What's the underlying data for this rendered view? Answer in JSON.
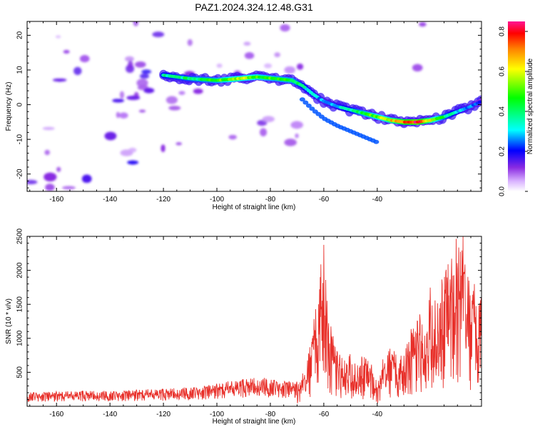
{
  "title": "PAZ1.2024.324.12.48.G31",
  "chart_data": [
    {
      "type": "heatmap",
      "xlabel": "Height of straight line (km)",
      "ylabel": "Frequency (Hz)",
      "xlim": [
        -171,
        -1
      ],
      "ylim": [
        -25,
        24
      ],
      "xticks": [
        -160,
        -140,
        -120,
        -100,
        -80,
        -60,
        -40
      ],
      "yticks": [
        -20,
        -10,
        0,
        10,
        20
      ],
      "colorbar": {
        "label": "Normalized spectral amplitude",
        "range": [
          0,
          0.85
        ],
        "ticks": [
          0.0,
          0.2,
          0.4,
          0.6,
          0.8
        ],
        "colors": [
          "#ffffff",
          "#d9b3ff",
          "#8a2be2",
          "#0000ff",
          "#00ffff",
          "#00ff00",
          "#ffff00",
          "#ff8000",
          "#ff0000",
          "#ff1493"
        ]
      },
      "ridge": {
        "x": [
          -120,
          -110,
          -100,
          -92,
          -85,
          -78,
          -72,
          -68,
          -64,
          -60,
          -55,
          -50,
          -45,
          -40,
          -35,
          -30,
          -25,
          -20,
          -15,
          -10,
          -5,
          -1
        ],
        "y": [
          8.5,
          7.5,
          7.0,
          7.5,
          8.0,
          7.5,
          7.0,
          5.5,
          3.0,
          1.0,
          -0.5,
          -1.5,
          -2.5,
          -3.5,
          -4.5,
          -5.0,
          -5.0,
          -4.5,
          -3.5,
          -2.0,
          -0.5,
          1.0
        ],
        "amplitude": [
          0.35,
          0.4,
          0.45,
          0.55,
          0.5,
          0.45,
          0.45,
          0.35,
          0.3,
          0.25,
          0.3,
          0.35,
          0.45,
          0.5,
          0.6,
          0.75,
          0.85,
          0.6,
          0.4,
          0.3,
          0.25,
          0.2
        ]
      },
      "grid": false
    },
    {
      "type": "line",
      "xlabel": "Height of straight line (km)",
      "ylabel": "SNR (10 * v/v)",
      "xlim": [
        -171,
        -1
      ],
      "ylim": [
        0,
        2500
      ],
      "xticks": [
        -160,
        -140,
        -120,
        -100,
        -80,
        -60,
        -40
      ],
      "yticks": [
        500,
        1000,
        1500,
        2000,
        2500
      ],
      "series": [
        {
          "color": "#e8302a",
          "x": [
            -171,
            -160,
            -150,
            -140,
            -130,
            -120,
            -110,
            -100,
            -95,
            -90,
            -85,
            -80,
            -75,
            -70,
            -67,
            -65,
            -63,
            -61,
            -60,
            -59,
            -58,
            -57,
            -55,
            -52,
            -50,
            -48,
            -45,
            -42,
            -40,
            -38,
            -35,
            -32,
            -30,
            -28,
            -26,
            -24,
            -22,
            -20,
            -18,
            -16,
            -14,
            -12,
            -10,
            -8,
            -6,
            -5,
            -4,
            -3,
            -2,
            -1
          ],
          "y": [
            150,
            150,
            160,
            160,
            170,
            180,
            200,
            230,
            260,
            280,
            300,
            290,
            270,
            250,
            500,
            900,
            1300,
            1900,
            2400,
            1700,
            1300,
            1000,
            700,
            600,
            550,
            600,
            700,
            500,
            250,
            600,
            850,
            600,
            750,
            1100,
            1000,
            1200,
            900,
            1300,
            1500,
            1700,
            1900,
            1800,
            2000,
            2400,
            1900,
            1500,
            1800,
            1300,
            1600,
            1400
          ]
        }
      ],
      "grid": false
    }
  ]
}
